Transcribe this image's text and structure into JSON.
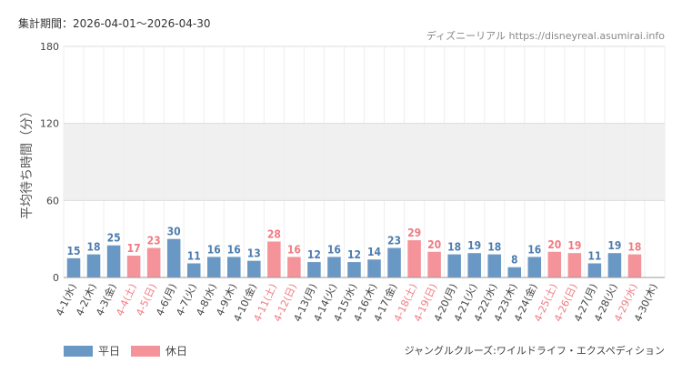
{
  "header": {
    "period_label": "集計期間：2026-04-01〜2026-04-30",
    "credit": "ディズニーリアル https://disneyreal.asumirai.info"
  },
  "footer": {
    "attraction": "ジャングルクルーズ:ワイルドライフ・エクスペディション"
  },
  "colors": {
    "weekday": "#6a98c5",
    "holiday": "#f5939a",
    "weekday_label": "#4d7dae",
    "holiday_label": "#f07b82",
    "band": "#f0f0f0"
  },
  "chart_data": {
    "type": "bar",
    "ylabel": "平均待ち時間（分）",
    "ylim": [
      0,
      180
    ],
    "yticks": [
      0,
      60,
      120,
      180
    ],
    "shaded_band": [
      60,
      120
    ],
    "grid": true,
    "legend_position": "bottom-left",
    "series": [
      {
        "name": "平日",
        "color": "#6a98c5"
      },
      {
        "name": "休日",
        "color": "#f5939a"
      }
    ],
    "categories": [
      "4-1(水)",
      "4-2(木)",
      "4-3(金)",
      "4-4(土)",
      "4-5(日)",
      "4-6(月)",
      "4-7(火)",
      "4-8(水)",
      "4-9(木)",
      "4-10(金)",
      "4-11(土)",
      "4-12(日)",
      "4-13(月)",
      "4-14(火)",
      "4-15(水)",
      "4-16(木)",
      "4-17(金)",
      "4-18(土)",
      "4-19(日)",
      "4-20(月)",
      "4-21(火)",
      "4-22(水)",
      "4-23(木)",
      "4-24(金)",
      "4-25(土)",
      "4-26(日)",
      "4-27(月)",
      "4-28(火)",
      "4-29(水)",
      "4-30(木)"
    ],
    "values": [
      15,
      18,
      25,
      17,
      23,
      30,
      11,
      16,
      16,
      13,
      28,
      16,
      12,
      16,
      12,
      14,
      23,
      29,
      20,
      18,
      19,
      18,
      8,
      16,
      20,
      19,
      11,
      19,
      18,
      null
    ],
    "holiday": [
      false,
      false,
      false,
      true,
      true,
      false,
      false,
      false,
      false,
      false,
      true,
      true,
      false,
      false,
      false,
      false,
      false,
      true,
      true,
      false,
      false,
      false,
      false,
      false,
      true,
      true,
      false,
      false,
      true,
      false
    ]
  }
}
